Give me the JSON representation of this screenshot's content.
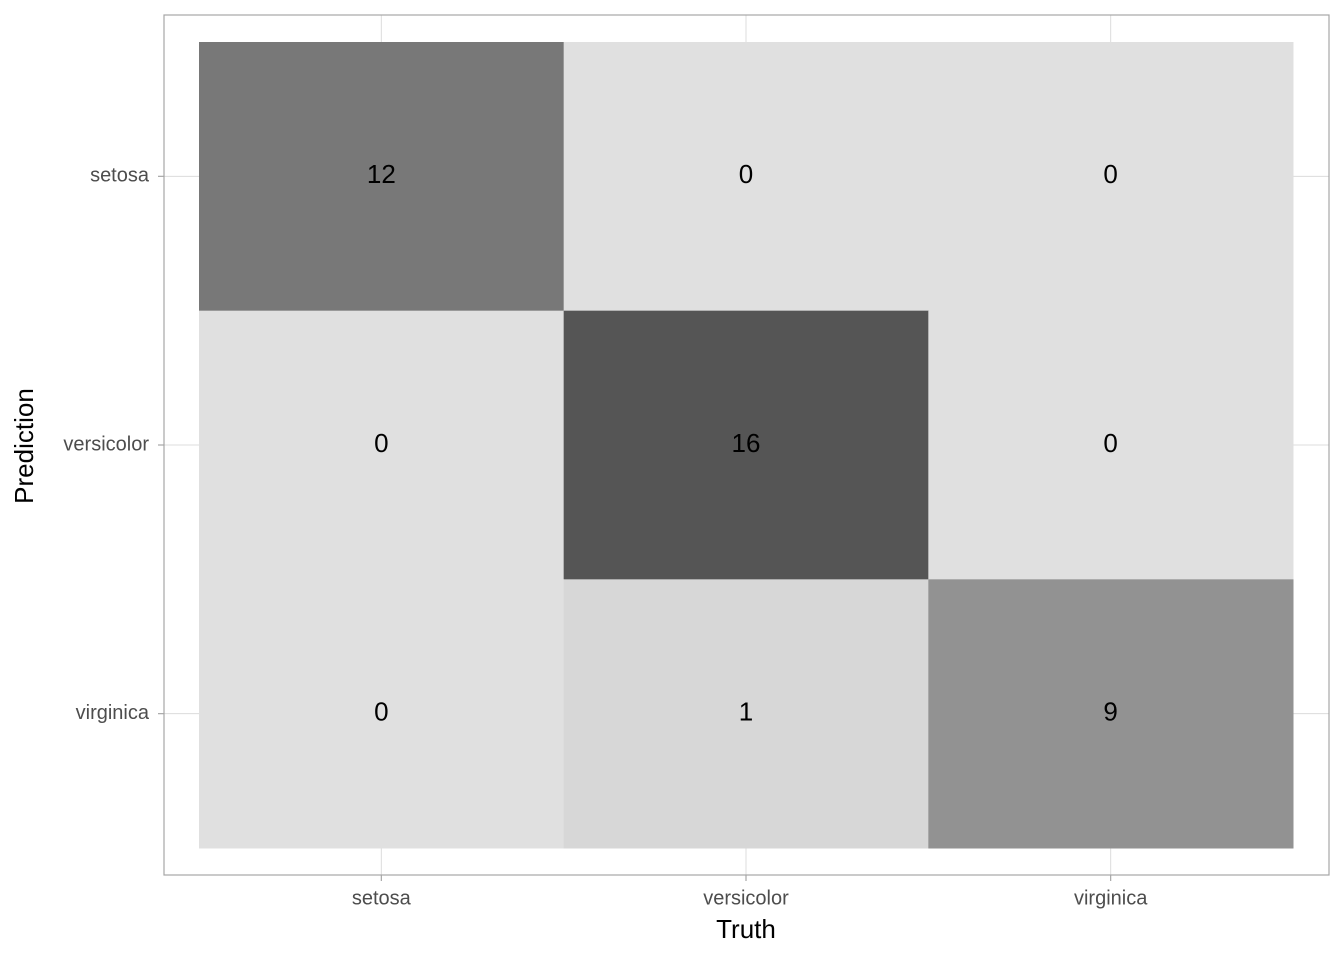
{
  "chart_data": {
    "type": "heatmap",
    "x_label": "Truth",
    "y_label": "Prediction",
    "x_categories": [
      "setosa",
      "versicolor",
      "virginica"
    ],
    "y_categories": [
      "setosa",
      "versicolor",
      "virginica"
    ],
    "values": [
      [
        12,
        0,
        0
      ],
      [
        0,
        16,
        0
      ],
      [
        0,
        1,
        9
      ]
    ],
    "colorscale": [
      "#e0e0e0",
      "#555555"
    ],
    "grid": true
  }
}
